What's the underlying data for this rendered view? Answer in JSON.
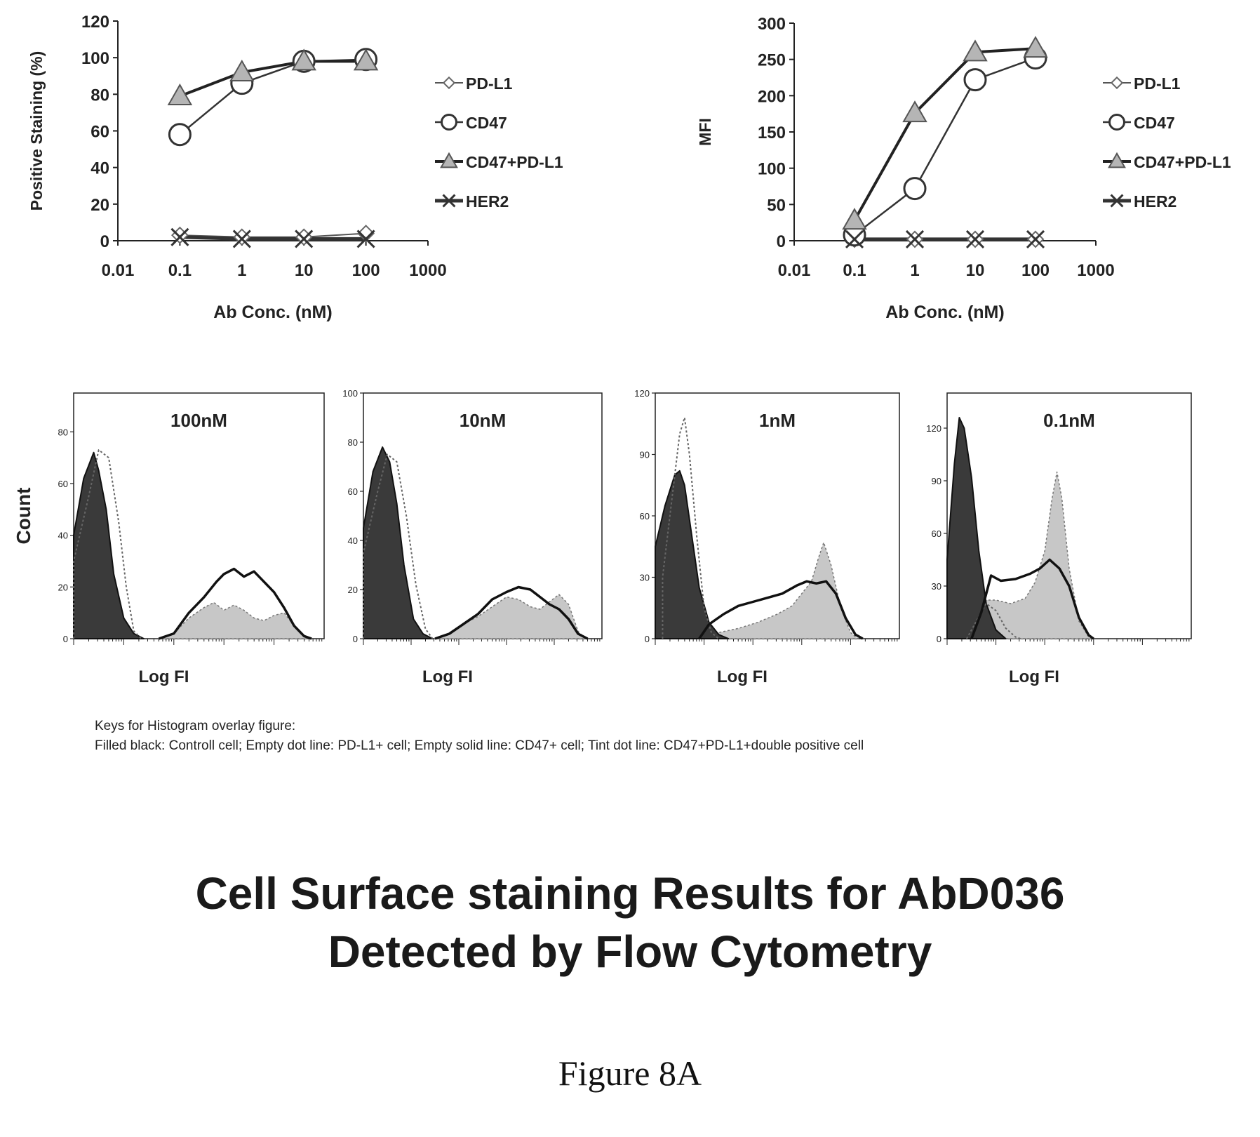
{
  "chart_data": [
    {
      "type": "line",
      "xscale": "log",
      "xlim": [
        0.01,
        1000
      ],
      "ylim": [
        0,
        120
      ],
      "x_ticks": [
        "0.01",
        "0.1",
        "1",
        "10",
        "100",
        "1000"
      ],
      "y_ticks": [
        "0",
        "20",
        "40",
        "60",
        "80",
        "100",
        "120"
      ],
      "xlabel": "Ab Conc. (nM)",
      "ylabel": "Positive Staining (%)",
      "legend_position": "right",
      "x": [
        0.1,
        1,
        10,
        100
      ],
      "series": [
        {
          "name": "PD-L1",
          "marker": "diamond",
          "values": [
            3,
            2,
            2,
            4
          ]
        },
        {
          "name": "CD47",
          "marker": "circle",
          "values": [
            58,
            86,
            98,
            99
          ]
        },
        {
          "name": "CD47+PD-L1",
          "marker": "triangle",
          "values": [
            79,
            92,
            98,
            98
          ]
        },
        {
          "name": "HER2",
          "marker": "x",
          "values": [
            2,
            1,
            1,
            1
          ]
        }
      ]
    },
    {
      "type": "line",
      "xscale": "log",
      "xlim": [
        0.01,
        1000
      ],
      "ylim": [
        0,
        300
      ],
      "x_ticks": [
        "0.01",
        "0.1",
        "1",
        "10",
        "100",
        "1000"
      ],
      "y_ticks": [
        "0",
        "50",
        "100",
        "150",
        "200",
        "250",
        "300"
      ],
      "xlabel": "Ab Conc. (nM)",
      "ylabel": "MFI",
      "legend_position": "right",
      "x": [
        0.1,
        1,
        10,
        100
      ],
      "series": [
        {
          "name": "PD-L1",
          "marker": "diamond",
          "values": [
            2,
            2,
            2,
            2
          ]
        },
        {
          "name": "CD47",
          "marker": "circle",
          "values": [
            8,
            72,
            222,
            252
          ]
        },
        {
          "name": "CD47+PD-L1",
          "marker": "triangle",
          "values": [
            28,
            176,
            260,
            265
          ]
        },
        {
          "name": "HER2",
          "marker": "x",
          "values": [
            2,
            2,
            2,
            2
          ]
        }
      ]
    },
    {
      "type": "area",
      "panel_label": "100nM",
      "xlabel": "Log FI",
      "ylabel": "Count",
      "ylim": [
        0,
        95
      ],
      "y_ticks": [
        "0",
        "20",
        "40",
        "60",
        "80"
      ],
      "series": [
        {
          "name": "Filled black",
          "points": [
            [
              0,
              40
            ],
            [
              0.04,
              62
            ],
            [
              0.08,
              72
            ],
            [
              0.1,
              65
            ],
            [
              0.13,
              50
            ],
            [
              0.16,
              25
            ],
            [
              0.2,
              8
            ],
            [
              0.24,
              2
            ],
            [
              0.28,
              0
            ]
          ]
        },
        {
          "name": "Empty dot line",
          "points": [
            [
              0,
              30
            ],
            [
              0.06,
              55
            ],
            [
              0.1,
              73
            ],
            [
              0.14,
              70
            ],
            [
              0.18,
              45
            ],
            [
              0.21,
              20
            ],
            [
              0.24,
              3
            ],
            [
              0.27,
              0
            ]
          ]
        },
        {
          "name": "Empty solid line",
          "points": [
            [
              0.34,
              0
            ],
            [
              0.4,
              2
            ],
            [
              0.46,
              10
            ],
            [
              0.52,
              16
            ],
            [
              0.57,
              22
            ],
            [
              0.6,
              25
            ],
            [
              0.64,
              27
            ],
            [
              0.68,
              24
            ],
            [
              0.72,
              26
            ],
            [
              0.76,
              22
            ],
            [
              0.8,
              18
            ],
            [
              0.84,
              12
            ],
            [
              0.88,
              5
            ],
            [
              0.92,
              1
            ],
            [
              0.95,
              0
            ]
          ]
        },
        {
          "name": "Tint dot line",
          "points": [
            [
              0.34,
              0
            ],
            [
              0.4,
              2
            ],
            [
              0.46,
              8
            ],
            [
              0.52,
              12
            ],
            [
              0.56,
              14
            ],
            [
              0.6,
              11
            ],
            [
              0.64,
              13
            ],
            [
              0.68,
              11
            ],
            [
              0.72,
              8
            ],
            [
              0.76,
              7
            ],
            [
              0.8,
              9
            ],
            [
              0.84,
              10
            ],
            [
              0.88,
              5
            ],
            [
              0.92,
              1
            ],
            [
              0.95,
              0
            ]
          ]
        }
      ]
    },
    {
      "type": "area",
      "panel_label": "10nM",
      "xlabel": "Log FI",
      "ylabel": "Count",
      "ylim": [
        0,
        100
      ],
      "y_ticks": [
        "0",
        "20",
        "40",
        "60",
        "80",
        "100"
      ],
      "series": [
        {
          "name": "Filled black",
          "points": [
            [
              0,
              45
            ],
            [
              0.04,
              68
            ],
            [
              0.08,
              78
            ],
            [
              0.11,
              72
            ],
            [
              0.14,
              55
            ],
            [
              0.17,
              30
            ],
            [
              0.21,
              8
            ],
            [
              0.25,
              2
            ],
            [
              0.29,
              0
            ]
          ]
        },
        {
          "name": "Empty dot line",
          "points": [
            [
              0,
              35
            ],
            [
              0.06,
              60
            ],
            [
              0.1,
              75
            ],
            [
              0.14,
              72
            ],
            [
              0.18,
              50
            ],
            [
              0.22,
              22
            ],
            [
              0.26,
              4
            ],
            [
              0.29,
              0
            ]
          ]
        },
        {
          "name": "Empty solid line",
          "points": [
            [
              0.3,
              0
            ],
            [
              0.36,
              2
            ],
            [
              0.42,
              6
            ],
            [
              0.48,
              10
            ],
            [
              0.54,
              16
            ],
            [
              0.6,
              19
            ],
            [
              0.65,
              21
            ],
            [
              0.7,
              20
            ],
            [
              0.74,
              17
            ],
            [
              0.78,
              14
            ],
            [
              0.82,
              12
            ],
            [
              0.86,
              8
            ],
            [
              0.9,
              2
            ],
            [
              0.94,
              0
            ]
          ]
        },
        {
          "name": "Tint dot line",
          "points": [
            [
              0.3,
              0
            ],
            [
              0.36,
              2
            ],
            [
              0.42,
              6
            ],
            [
              0.48,
              9
            ],
            [
              0.54,
              13
            ],
            [
              0.6,
              17
            ],
            [
              0.65,
              16
            ],
            [
              0.7,
              13
            ],
            [
              0.74,
              12
            ],
            [
              0.78,
              15
            ],
            [
              0.82,
              18
            ],
            [
              0.86,
              14
            ],
            [
              0.9,
              3
            ],
            [
              0.93,
              0
            ]
          ]
        }
      ]
    },
    {
      "type": "area",
      "panel_label": "1nM",
      "xlabel": "Log FI",
      "ylabel": "Count",
      "ylim": [
        0,
        120
      ],
      "y_ticks": [
        "0",
        "30",
        "60",
        "90",
        "120"
      ],
      "series": [
        {
          "name": "Filled black",
          "points": [
            [
              0,
              45
            ],
            [
              0.04,
              65
            ],
            [
              0.08,
              80
            ],
            [
              0.1,
              82
            ],
            [
              0.12,
              75
            ],
            [
              0.15,
              50
            ],
            [
              0.18,
              25
            ],
            [
              0.22,
              8
            ],
            [
              0.26,
              2
            ],
            [
              0.3,
              0
            ]
          ]
        },
        {
          "name": "Empty dot line",
          "points": [
            [
              0.03,
              30
            ],
            [
              0.07,
              70
            ],
            [
              0.1,
              100
            ],
            [
              0.12,
              108
            ],
            [
              0.14,
              90
            ],
            [
              0.17,
              50
            ],
            [
              0.2,
              15
            ],
            [
              0.23,
              3
            ],
            [
              0.26,
              0
            ]
          ]
        },
        {
          "name": "Empty solid line",
          "points": [
            [
              0.18,
              0
            ],
            [
              0.22,
              7
            ],
            [
              0.28,
              12
            ],
            [
              0.34,
              16
            ],
            [
              0.4,
              18
            ],
            [
              0.46,
              20
            ],
            [
              0.52,
              22
            ],
            [
              0.58,
              26
            ],
            [
              0.62,
              28
            ],
            [
              0.66,
              27
            ],
            [
              0.7,
              28
            ],
            [
              0.74,
              22
            ],
            [
              0.78,
              10
            ],
            [
              0.82,
              2
            ],
            [
              0.85,
              0
            ]
          ]
        },
        {
          "name": "Tint dot line",
          "points": [
            [
              0.18,
              0
            ],
            [
              0.26,
              3
            ],
            [
              0.34,
              5
            ],
            [
              0.42,
              8
            ],
            [
              0.5,
              12
            ],
            [
              0.56,
              16
            ],
            [
              0.6,
              22
            ],
            [
              0.64,
              28
            ],
            [
              0.67,
              40
            ],
            [
              0.69,
              47
            ],
            [
              0.72,
              36
            ],
            [
              0.76,
              15
            ],
            [
              0.8,
              3
            ],
            [
              0.83,
              0
            ]
          ]
        }
      ]
    },
    {
      "type": "area",
      "panel_label": "0.1nM",
      "xlabel": "Log FI",
      "ylabel": "Count",
      "ylim": [
        0,
        140
      ],
      "y_ticks": [
        "0",
        "30",
        "60",
        "90",
        "120"
      ],
      "series": [
        {
          "name": "Filled black",
          "points": [
            [
              0,
              45
            ],
            [
              0.03,
              100
            ],
            [
              0.05,
              126
            ],
            [
              0.07,
              120
            ],
            [
              0.1,
              92
            ],
            [
              0.13,
              50
            ],
            [
              0.16,
              20
            ],
            [
              0.2,
              5
            ],
            [
              0.24,
              0
            ]
          ]
        },
        {
          "name": "Empty dot line",
          "points": [
            [
              0.08,
              0
            ],
            [
              0.12,
              10
            ],
            [
              0.16,
              20
            ],
            [
              0.2,
              16
            ],
            [
              0.24,
              6
            ],
            [
              0.28,
              1
            ],
            [
              0.3,
              0
            ]
          ]
        },
        {
          "name": "Empty solid line",
          "points": [
            [
              0.1,
              0
            ],
            [
              0.14,
              15
            ],
            [
              0.18,
              36
            ],
            [
              0.22,
              33
            ],
            [
              0.28,
              34
            ],
            [
              0.34,
              37
            ],
            [
              0.38,
              40
            ],
            [
              0.42,
              45
            ],
            [
              0.46,
              40
            ],
            [
              0.5,
              30
            ],
            [
              0.54,
              12
            ],
            [
              0.58,
              2
            ],
            [
              0.6,
              0
            ]
          ]
        },
        {
          "name": "Tint dot line",
          "points": [
            [
              0.12,
              0
            ],
            [
              0.16,
              22
            ],
            [
              0.2,
              22
            ],
            [
              0.26,
              20
            ],
            [
              0.32,
              23
            ],
            [
              0.36,
              32
            ],
            [
              0.4,
              50
            ],
            [
              0.43,
              80
            ],
            [
              0.45,
              95
            ],
            [
              0.47,
              80
            ],
            [
              0.5,
              40
            ],
            [
              0.54,
              10
            ],
            [
              0.58,
              1
            ],
            [
              0.6,
              0
            ]
          ]
        }
      ]
    }
  ],
  "keys": {
    "title": "Keys for Histogram overlay figure:",
    "line": "Filled black: Controll cell; Empty dot line: PD-L1+ cell; Empty solid line: CD47+ cell; Tint dot line: CD47+PD-L1+double positive cell"
  },
  "title": {
    "line1": "Cell Surface staining Results for AbD036",
    "line2": "Detected by Flow Cytometry"
  },
  "figure_label": "Figure 8A"
}
